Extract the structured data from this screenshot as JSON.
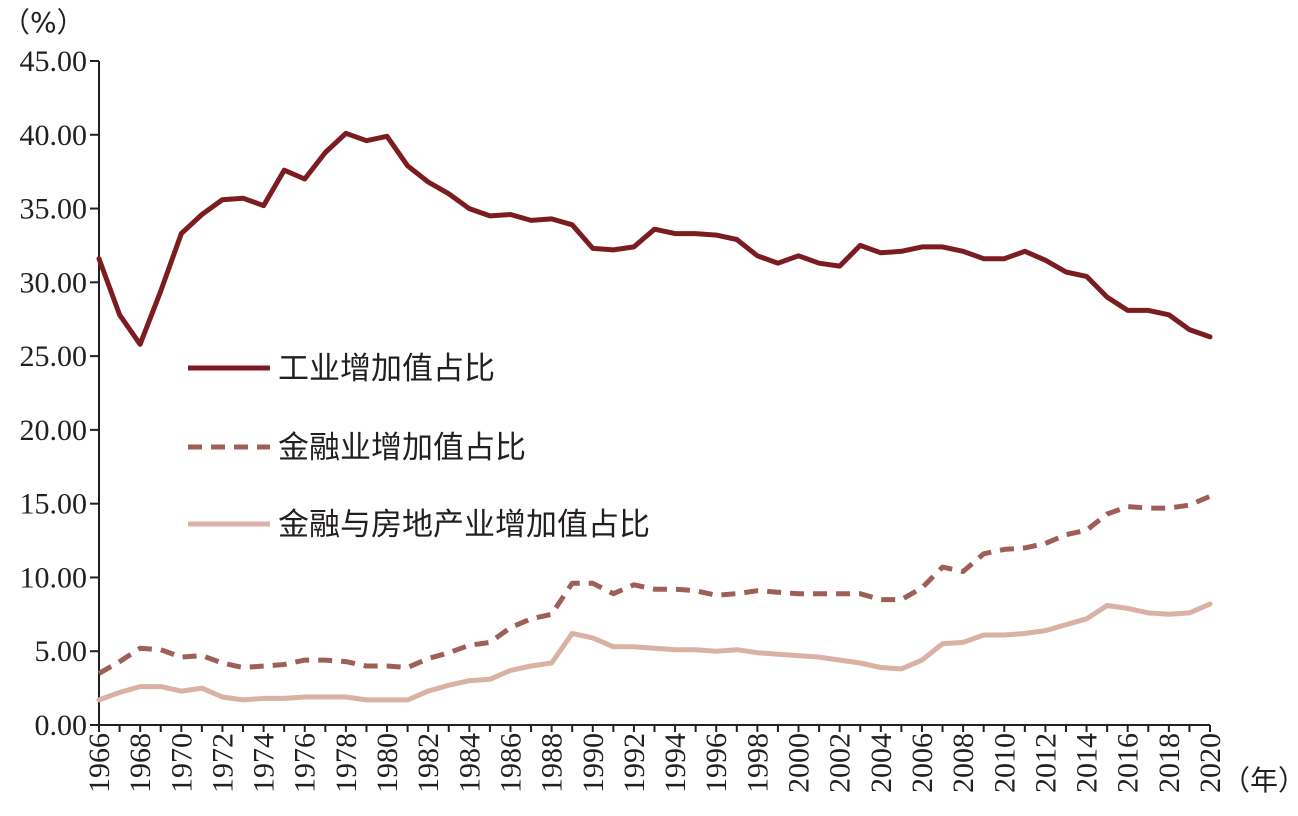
{
  "chart_data": {
    "type": "line",
    "y_unit_label": "（%）",
    "x_unit_label": "（年）",
    "ylim": [
      0,
      45
    ],
    "yticks": [
      0,
      5,
      10,
      15,
      20,
      25,
      30,
      35,
      40,
      45
    ],
    "ytick_labels": [
      "0.00",
      "5.00",
      "10.00",
      "15.00",
      "20.00",
      "25.00",
      "30.00",
      "35.00",
      "40.00",
      "45.00"
    ],
    "xlim": [
      1966,
      2020
    ],
    "xtick_labels": [
      "1966",
      "1968",
      "1970",
      "1972",
      "1974",
      "1976",
      "1978",
      "1980",
      "1982",
      "1984",
      "1986",
      "1988",
      "1990",
      "1992",
      "1994",
      "1996",
      "1998",
      "2000",
      "2002",
      "2004",
      "2006",
      "2008",
      "2010",
      "2012",
      "2014",
      "2016",
      "2018",
      "2020"
    ],
    "x": [
      1966,
      1967,
      1968,
      1969,
      1970,
      1971,
      1972,
      1973,
      1974,
      1975,
      1976,
      1977,
      1978,
      1979,
      1980,
      1981,
      1982,
      1983,
      1984,
      1985,
      1986,
      1987,
      1988,
      1989,
      1990,
      1991,
      1992,
      1993,
      1994,
      1995,
      1996,
      1997,
      1998,
      1999,
      2000,
      2001,
      2002,
      2003,
      2004,
      2005,
      2006,
      2007,
      2008,
      2009,
      2010,
      2011,
      2012,
      2013,
      2014,
      2015,
      2016,
      2017,
      2018,
      2019,
      2020
    ],
    "legend_position": "middle-left",
    "series": [
      {
        "name": "工业增加值占比",
        "color": "#7b1c20",
        "style": "solid",
        "values": [
          31.6,
          27.8,
          25.8,
          29.4,
          33.3,
          34.6,
          35.6,
          35.7,
          35.2,
          37.6,
          37.0,
          38.8,
          40.1,
          39.6,
          39.9,
          37.9,
          36.8,
          36.0,
          35.0,
          34.5,
          34.6,
          34.2,
          34.3,
          33.9,
          32.3,
          32.2,
          32.4,
          33.6,
          33.3,
          33.3,
          33.2,
          32.9,
          31.8,
          31.3,
          31.8,
          31.3,
          31.1,
          32.5,
          32.0,
          32.1,
          32.4,
          32.4,
          32.1,
          31.6,
          31.6,
          32.1,
          31.5,
          30.7,
          30.4,
          29.0,
          28.1,
          28.1,
          27.8,
          26.8,
          26.3
        ]
      },
      {
        "name": "金融业增加值占比",
        "color": "#9e5f56",
        "style": "dashed",
        "values": [
          3.5,
          4.3,
          5.2,
          5.1,
          4.6,
          4.7,
          4.2,
          3.9,
          4.0,
          4.1,
          4.4,
          4.4,
          4.3,
          4.0,
          4.0,
          3.9,
          4.5,
          4.9,
          5.4,
          5.6,
          6.6,
          7.2,
          7.5,
          9.6,
          9.6,
          8.9,
          9.5,
          9.2,
          9.2,
          9.1,
          8.8,
          8.9,
          9.1,
          9.0,
          8.9,
          8.9,
          8.9,
          8.9,
          8.5,
          8.5,
          9.3,
          10.7,
          10.4,
          11.6,
          11.9,
          12.0,
          12.3,
          12.9,
          13.2,
          14.3,
          14.8,
          14.7,
          14.7,
          14.9,
          15.5
        ]
      },
      {
        "name": "金融与房地产业增加值占比",
        "color": "#d9b1a5",
        "style": "solid",
        "values": [
          1.7,
          2.2,
          2.6,
          2.6,
          2.3,
          2.5,
          1.9,
          1.7,
          1.8,
          1.8,
          1.9,
          1.9,
          1.9,
          1.7,
          1.7,
          1.7,
          2.3,
          2.7,
          3.0,
          3.1,
          3.7,
          4.0,
          4.2,
          6.2,
          5.9,
          5.3,
          5.3,
          5.2,
          5.1,
          5.1,
          5.0,
          5.1,
          4.9,
          4.8,
          4.7,
          4.6,
          4.4,
          4.2,
          3.9,
          3.8,
          4.4,
          5.5,
          5.6,
          6.1,
          6.1,
          6.2,
          6.4,
          6.8,
          7.2,
          8.1,
          7.9,
          7.6,
          7.5,
          7.6,
          8.2
        ]
      }
    ]
  }
}
